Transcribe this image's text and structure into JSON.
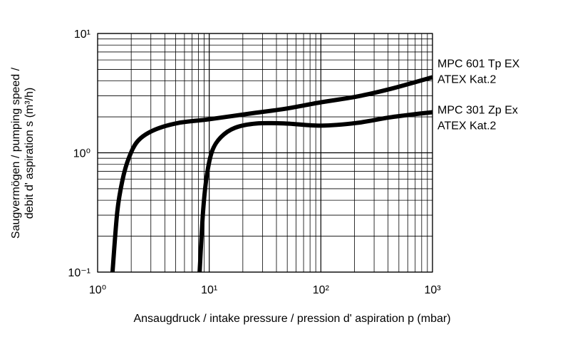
{
  "chart_data": {
    "type": "line",
    "xlabel": "Ansaugdruck / intake pressure / pression d' aspiration p (mbar)",
    "ylabel": [
      "Saugvermögen / pumping speed /",
      "debit d' aspiration s (m³/h)"
    ],
    "xscale": "log",
    "yscale": "log",
    "grid": true,
    "minor_grid": true,
    "xlim": [
      1,
      1000
    ],
    "ylim": [
      0.1,
      10
    ],
    "xticks": [
      {
        "value": 1,
        "label": "10⁰"
      },
      {
        "value": 10,
        "label": "10¹"
      },
      {
        "value": 100,
        "label": "10²"
      },
      {
        "value": 1000,
        "label": "10³"
      }
    ],
    "yticks": [
      {
        "value": 0.1,
        "label": "10⁻¹"
      },
      {
        "value": 1,
        "label": "10⁰"
      },
      {
        "value": 10,
        "label": "10¹"
      }
    ],
    "series": [
      {
        "name": [
          "MPC 601 Tp EX",
          "ATEX Kat.2"
        ],
        "color": "#000000",
        "x": [
          1.36,
          1.5,
          1.67,
          1.9,
          2.3,
          3.2,
          5.3,
          10,
          23,
          48,
          100,
          210,
          430,
          1000
        ],
        "values": [
          0.1,
          0.32,
          0.59,
          0.9,
          1.26,
          1.55,
          1.78,
          1.91,
          2.13,
          2.34,
          2.65,
          2.96,
          3.45,
          4.3
        ]
      },
      {
        "name": [
          "MPC 301 Zp Ex",
          "ATEX Kat.2"
        ],
        "color": "#000000",
        "x": [
          8.2,
          8.8,
          9.5,
          10.6,
          12.7,
          17,
          26.5,
          48,
          100,
          210,
          430,
          1000
        ],
        "values": [
          0.1,
          0.32,
          0.64,
          1.03,
          1.35,
          1.62,
          1.76,
          1.76,
          1.69,
          1.78,
          1.99,
          2.19
        ]
      }
    ]
  }
}
